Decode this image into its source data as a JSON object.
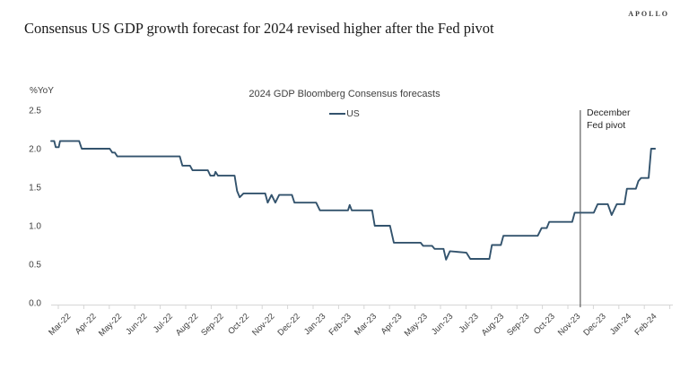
{
  "header": {
    "title": "Consensus US GDP growth forecast for 2024 revised higher after the Fed pivot",
    "logo": "APOLLO"
  },
  "chart": {
    "title": "2024 GDP Bloomberg Consensus forecasts",
    "legend": {
      "series_label": "US"
    },
    "y_axis_label": "%YoY",
    "pivot_annotation": {
      "line1": "December",
      "line2": "Fed pivot"
    },
    "colors": {
      "line": "#33536D",
      "pivot_line": "#404040",
      "axis": "#D6D6D6",
      "tick_text": "#404040",
      "title_text": "#1A1A1A"
    }
  },
  "chart_data": {
    "type": "line",
    "title": "2024 GDP Bloomberg Consensus forecasts",
    "xlabel": "",
    "ylabel": "%YoY",
    "ylim": [
      0.0,
      2.5
    ],
    "y_ticks": [
      2.5,
      2.0,
      1.5,
      1.0,
      0.5,
      0.0
    ],
    "grid": false,
    "legend_position": "top-center",
    "categories": [
      "Mar-22",
      "Apr-22",
      "May-22",
      "Jun-22",
      "Jul-22",
      "Aug-22",
      "Sep-22",
      "Oct-22",
      "Nov-22",
      "Dec-22",
      "Jan-23",
      "Feb-23",
      "Mar-23",
      "Apr-23",
      "May-23",
      "Jun-23",
      "Jul-23",
      "Aug-23",
      "Sep-23",
      "Oct-23",
      "Nov-23",
      "Dec-23",
      "Jan-24",
      "Feb-24"
    ],
    "series": [
      {
        "name": "US",
        "x_unit": "months_since_Mar_2022",
        "points": [
          [
            0.0,
            2.1
          ],
          [
            0.12,
            2.1
          ],
          [
            0.18,
            2.02
          ],
          [
            0.3,
            2.02
          ],
          [
            0.35,
            2.1
          ],
          [
            1.1,
            2.1
          ],
          [
            1.2,
            2.0
          ],
          [
            2.3,
            2.0
          ],
          [
            2.4,
            1.95
          ],
          [
            2.5,
            1.95
          ],
          [
            2.6,
            1.9
          ],
          [
            5.05,
            1.9
          ],
          [
            5.15,
            1.78
          ],
          [
            5.45,
            1.78
          ],
          [
            5.55,
            1.72
          ],
          [
            6.15,
            1.72
          ],
          [
            6.25,
            1.65
          ],
          [
            6.4,
            1.65
          ],
          [
            6.45,
            1.7
          ],
          [
            6.55,
            1.65
          ],
          [
            7.2,
            1.65
          ],
          [
            7.3,
            1.45
          ],
          [
            7.4,
            1.37
          ],
          [
            7.55,
            1.42
          ],
          [
            8.4,
            1.42
          ],
          [
            8.5,
            1.3
          ],
          [
            8.65,
            1.4
          ],
          [
            8.8,
            1.3
          ],
          [
            8.95,
            1.4
          ],
          [
            9.45,
            1.4
          ],
          [
            9.55,
            1.3
          ],
          [
            10.4,
            1.3
          ],
          [
            10.55,
            1.2
          ],
          [
            11.65,
            1.2
          ],
          [
            11.72,
            1.27
          ],
          [
            11.8,
            1.2
          ],
          [
            12.6,
            1.2
          ],
          [
            12.7,
            1.0
          ],
          [
            13.3,
            1.0
          ],
          [
            13.45,
            0.78
          ],
          [
            14.5,
            0.78
          ],
          [
            14.6,
            0.74
          ],
          [
            14.95,
            0.74
          ],
          [
            15.05,
            0.7
          ],
          [
            15.4,
            0.7
          ],
          [
            15.5,
            0.56
          ],
          [
            15.65,
            0.67
          ],
          [
            16.3,
            0.65
          ],
          [
            16.45,
            0.57
          ],
          [
            17.2,
            0.57
          ],
          [
            17.3,
            0.75
          ],
          [
            17.65,
            0.75
          ],
          [
            17.75,
            0.87
          ],
          [
            19.1,
            0.87
          ],
          [
            19.25,
            0.97
          ],
          [
            19.45,
            0.97
          ],
          [
            19.55,
            1.05
          ],
          [
            20.45,
            1.05
          ],
          [
            20.55,
            1.17
          ],
          [
            21.3,
            1.17
          ],
          [
            21.45,
            1.28
          ],
          [
            21.85,
            1.28
          ],
          [
            22.0,
            1.14
          ],
          [
            22.2,
            1.28
          ],
          [
            22.5,
            1.28
          ],
          [
            22.6,
            1.48
          ],
          [
            22.95,
            1.48
          ],
          [
            23.05,
            1.58
          ],
          [
            23.15,
            1.62
          ],
          [
            23.45,
            1.62
          ],
          [
            23.55,
            2.0
          ],
          [
            23.7,
            2.0
          ]
        ]
      }
    ],
    "annotations": [
      {
        "type": "vline",
        "x_month": 20.77,
        "label": "December Fed pivot",
        "value_at_line": 1.17
      }
    ]
  }
}
